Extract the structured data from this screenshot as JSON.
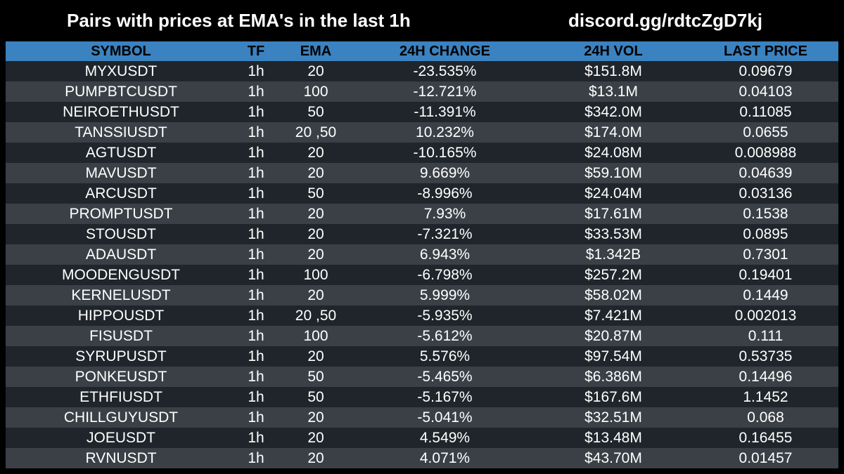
{
  "header": {
    "title": "Pairs with prices at EMA's in the last 1h",
    "discord": "discord.gg/rdtcZgD7kj"
  },
  "table": {
    "columns": [
      "SYMBOL",
      "TF",
      "EMA",
      "24H CHANGE",
      "24H VOL",
      "LAST PRICE"
    ],
    "rows": [
      [
        "MYXUSDT",
        "1h",
        "20",
        "-23.535%",
        "$151.8M",
        "0.09679"
      ],
      [
        "PUMPBTCUSDT",
        "1h",
        "100",
        "-12.721%",
        "$13.1M",
        "0.04103"
      ],
      [
        "NEIROETHUSDT",
        "1h",
        "50",
        "-11.391%",
        "$342.0M",
        "0.11085"
      ],
      [
        "TANSSIUSDT",
        "1h",
        "20 ,50",
        "10.232%",
        "$174.0M",
        "0.0655"
      ],
      [
        "AGTUSDT",
        "1h",
        "20",
        "-10.165%",
        "$24.08M",
        "0.008988"
      ],
      [
        "MAVUSDT",
        "1h",
        "20",
        "9.669%",
        "$59.10M",
        "0.04639"
      ],
      [
        "ARCUSDT",
        "1h",
        "50",
        "-8.996%",
        "$24.04M",
        "0.03136"
      ],
      [
        "PROMPTUSDT",
        "1h",
        "20",
        "7.93%",
        "$17.61M",
        "0.1538"
      ],
      [
        "STOUSDT",
        "1h",
        "20",
        "-7.321%",
        "$33.53M",
        "0.0895"
      ],
      [
        "ADAUSDT",
        "1h",
        "20",
        "6.943%",
        "$1.342B",
        "0.7301"
      ],
      [
        "MOODENGUSDT",
        "1h",
        "100",
        "-6.798%",
        "$257.2M",
        "0.19401"
      ],
      [
        "KERNELUSDT",
        "1h",
        "20",
        "5.999%",
        "$58.02M",
        "0.1449"
      ],
      [
        "HIPPOUSDT",
        "1h",
        "20 ,50",
        "-5.935%",
        "$7.421M",
        "0.002013"
      ],
      [
        "FISUSDT",
        "1h",
        "100",
        "-5.612%",
        "$20.87M",
        "0.111"
      ],
      [
        "SYRUPUSDT",
        "1h",
        "20",
        "5.576%",
        "$97.54M",
        "0.53735"
      ],
      [
        "PONKEUSDT",
        "1h",
        "50",
        "-5.465%",
        "$6.386M",
        "0.14496"
      ],
      [
        "ETHFIUSDT",
        "1h",
        "50",
        "-5.167%",
        "$167.6M",
        "1.1452"
      ],
      [
        "CHILLGUYUSDT",
        "1h",
        "20",
        "-5.041%",
        "$32.51M",
        "0.068"
      ],
      [
        "JOEUSDT",
        "1h",
        "20",
        "4.549%",
        "$13.48M",
        "0.16455"
      ],
      [
        "RVNUSDT",
        "1h",
        "20",
        "4.071%",
        "$43.70M",
        "0.01457"
      ]
    ]
  },
  "colors": {
    "background": "#000000",
    "header_bar": "#3b82c0",
    "row_dark": "#1f252a",
    "row_light": "#3a4046",
    "text": "#ffffff"
  }
}
